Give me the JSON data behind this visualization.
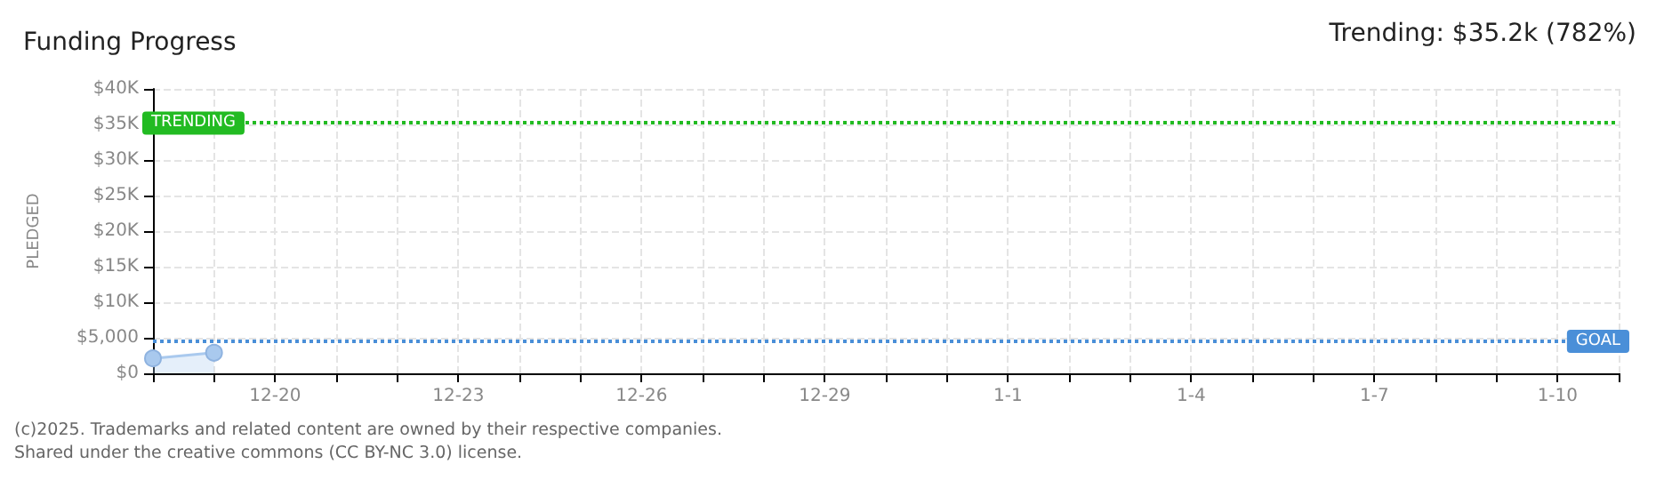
{
  "chart_data": {
    "type": "area",
    "title": "Funding Progress",
    "subtitle": "Trending: $35.2k (782%)",
    "ylabel": "PLEDGED",
    "x": [
      "2024-12-18",
      "2024-12-19"
    ],
    "series": [
      {
        "color": "#a9c9ee",
        "values": [
          2100,
          2900
        ]
      }
    ],
    "marker": "circle",
    "grid": true,
    "xlim": [
      "2024-12-18",
      "2025-01-11"
    ],
    "xticks": [
      {
        "value": "2024-12-18",
        "label": null
      },
      {
        "value": "2024-12-19",
        "label": null
      },
      {
        "value": "2024-12-20",
        "label": "12-20"
      },
      {
        "value": "2024-12-21",
        "label": null
      },
      {
        "value": "2024-12-22",
        "label": null
      },
      {
        "value": "2024-12-23",
        "label": "12-23"
      },
      {
        "value": "2024-12-24",
        "label": null
      },
      {
        "value": "2024-12-25",
        "label": null
      },
      {
        "value": "2024-12-26",
        "label": "12-26"
      },
      {
        "value": "2024-12-27",
        "label": null
      },
      {
        "value": "2024-12-28",
        "label": null
      },
      {
        "value": "2024-12-29",
        "label": "12-29"
      },
      {
        "value": "2024-12-30",
        "label": null
      },
      {
        "value": "2024-12-31",
        "label": null
      },
      {
        "value": "2025-01-01",
        "label": "1-1"
      },
      {
        "value": "2025-01-02",
        "label": null
      },
      {
        "value": "2025-01-03",
        "label": null
      },
      {
        "value": "2025-01-04",
        "label": "1-4"
      },
      {
        "value": "2025-01-05",
        "label": null
      },
      {
        "value": "2025-01-06",
        "label": null
      },
      {
        "value": "2025-01-07",
        "label": "1-7"
      },
      {
        "value": "2025-01-08",
        "label": null
      },
      {
        "value": "2025-01-09",
        "label": null
      },
      {
        "value": "2025-01-10",
        "label": "1-10"
      },
      {
        "value": "2025-01-11",
        "label": null
      }
    ],
    "ylim": [
      0,
      40000
    ],
    "yticks": [
      {
        "value": 0,
        "label": "$0"
      },
      {
        "value": 5000,
        "label": "$5,000"
      },
      {
        "value": 10000,
        "label": "$10K"
      },
      {
        "value": 15000,
        "label": "$15K"
      },
      {
        "value": 20000,
        "label": "$20K"
      },
      {
        "value": 25000,
        "label": "$25K"
      },
      {
        "value": 30000,
        "label": "$30K"
      },
      {
        "value": 35000,
        "label": "$35K"
      },
      {
        "value": 40000,
        "label": "$40K"
      }
    ],
    "ref_lines": [
      {
        "axis": "y",
        "value": 35200,
        "label": "TRENDING",
        "color": "#22bb22",
        "line_style": "dotted"
      },
      {
        "axis": "y",
        "value": 4500,
        "label": "GOAL",
        "color": "#4a8fd8",
        "line_style": "dotted"
      }
    ],
    "annotations": [
      "(c)2025. Trademarks and related content are owned by their respective companies.",
      "Shared under the creative commons (CC BY-NC 3.0) license."
    ]
  }
}
